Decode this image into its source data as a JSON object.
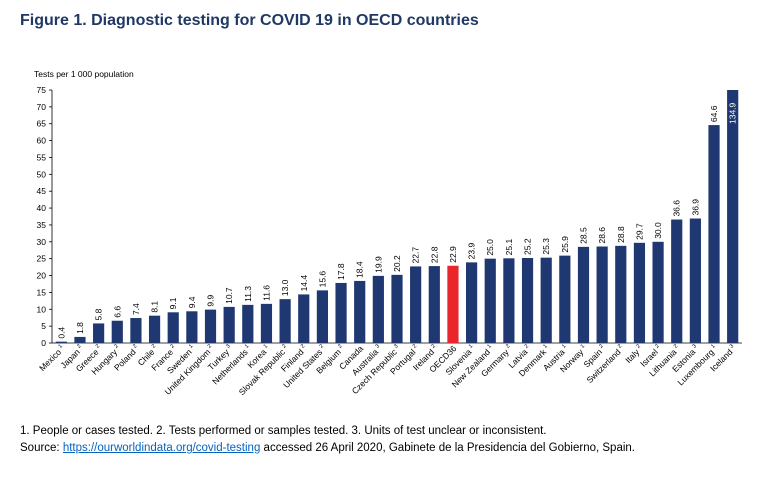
{
  "title": "Figure 1. Diagnostic testing for COVID 19 in OECD countries",
  "notes": {
    "definitions": "1. People or cases tested. 2. Tests performed or samples tested. 3. Units of test unclear or inconsistent.",
    "source_prefix": "Source: ",
    "source_link": "https://ourworldindata.org/covid-testing",
    "source_suffix": " accessed 26 April 2020, Gabinete de la Presidencia del Gobierno, Spain."
  },
  "chart_data": {
    "type": "bar",
    "title": "Figure 1. Diagnostic testing for COVID 19 in OECD countries",
    "ylabel": "Tests per 1 000 population",
    "ylim": [
      0,
      75
    ],
    "yticks": [
      0,
      5,
      10,
      15,
      20,
      25,
      30,
      35,
      40,
      45,
      50,
      55,
      60,
      65,
      70,
      75
    ],
    "grid": false,
    "categories": [
      "Mexico",
      "Japan",
      "Greece",
      "Hungary",
      "Poland",
      "Chile",
      "France",
      "Sweden",
      "United Kingdom",
      "Turkey",
      "Netherlands",
      "Korea",
      "Slovak Republic",
      "Finland",
      "United States",
      "Belgium",
      "Canada",
      "Australia",
      "Czech Republic",
      "Portugal",
      "Ireland",
      "OECD36",
      "Slovenia",
      "New Zealand",
      "Germany",
      "Latvia",
      "Denmark",
      "Austria",
      "Norway",
      "Spain",
      "Switzerland",
      "Italy",
      "Israel",
      "Lithuania",
      "Estonia",
      "Luxembourg",
      "Iceland"
    ],
    "note_markers": [
      "1",
      "2",
      "2",
      "2",
      "2",
      "2",
      "2",
      "1",
      "2",
      "3",
      "1",
      "1",
      "2",
      "2",
      "2",
      "2",
      "",
      "3",
      "3",
      "2",
      "2",
      "",
      "1",
      "1",
      "2",
      "2",
      "1",
      "1",
      "1",
      "2",
      "2",
      "2",
      "2",
      "2",
      "3",
      "1",
      "3"
    ],
    "values": [
      0.4,
      1.8,
      5.8,
      6.6,
      7.4,
      8.1,
      9.1,
      9.4,
      9.9,
      10.7,
      11.3,
      11.6,
      13.0,
      14.4,
      15.6,
      17.8,
      18.4,
      19.9,
      20.2,
      22.7,
      22.8,
      22.9,
      23.9,
      25.0,
      25.1,
      25.2,
      25.3,
      25.9,
      28.5,
      28.6,
      28.8,
      29.7,
      30.0,
      36.6,
      36.9,
      64.6,
      134.9
    ],
    "data_labels": [
      "0.4",
      "1.8",
      "5.8",
      "6.6",
      "7.4",
      "8.1",
      "9.1",
      "9.4",
      "9.9",
      "10.7",
      "11.3",
      "11.6",
      "13.0",
      "14.4",
      "15.6",
      "17.8",
      "18.4",
      "19.9",
      "20.2",
      "22.7",
      "22.8",
      "22.9",
      "23.9",
      "25.0",
      "25.1",
      "25.2",
      "25.3",
      "25.9",
      "28.5",
      "28.6",
      "28.8",
      "29.7",
      "30.0",
      "36.6",
      "36.9",
      "64.6",
      "134.9"
    ],
    "highlight_category": "OECD36",
    "colors": {
      "bar": "#1f3871",
      "highlight": "#e8262b",
      "axis": "#000000"
    }
  }
}
